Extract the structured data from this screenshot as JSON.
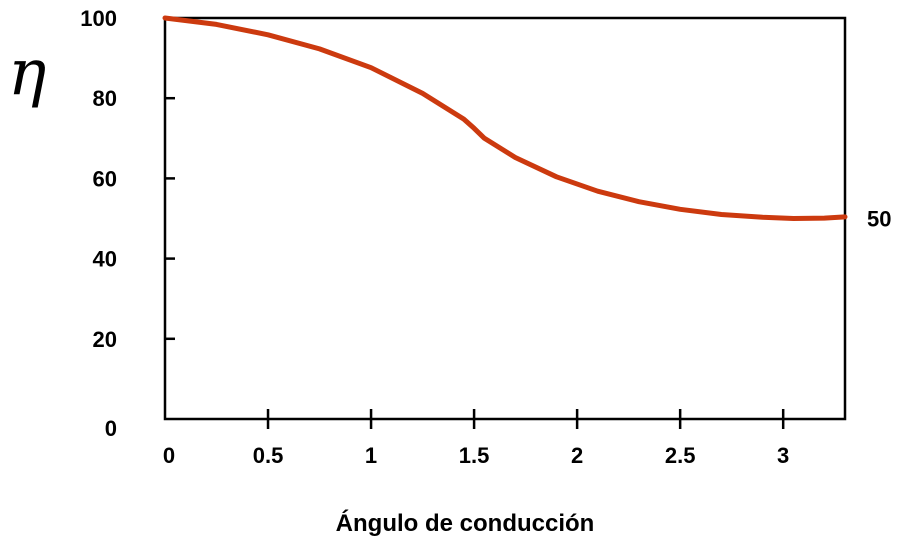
{
  "chart_data": {
    "type": "line",
    "title": "",
    "xlabel": "Ángulo de conducción",
    "ylabel": "η",
    "xlim": [
      0,
      3.3
    ],
    "ylim": [
      0,
      100
    ],
    "x_ticks": [
      0,
      0.5,
      1,
      1.5,
      2,
      2.5,
      3
    ],
    "x_tick_labels": [
      "0",
      "0.5",
      "1",
      "1.5",
      "2",
      "2.5",
      "3"
    ],
    "y_ticks": [
      0,
      20,
      40,
      60,
      80,
      100
    ],
    "y_tick_labels": [
      "0",
      "20",
      "40",
      "60",
      "80",
      "100"
    ],
    "grid": false,
    "series": [
      {
        "color": "#cc3a0f",
        "x": [
          0,
          0.25,
          0.5,
          0.75,
          1.0,
          1.25,
          1.45,
          1.5,
          1.55,
          1.7,
          1.9,
          2.1,
          2.3,
          2.5,
          2.7,
          2.9,
          3.05,
          3.2,
          3.3
        ],
        "y": [
          100,
          98.4,
          95.8,
          92.3,
          87.6,
          81.2,
          74.8,
          72.5,
          70,
          65.2,
          60.4,
          56.8,
          54.2,
          52.3,
          51,
          50.3,
          50,
          50.1,
          50.4
        ]
      }
    ],
    "annotations": [
      {
        "text": "50",
        "x": 3.3,
        "y": 50
      }
    ]
  }
}
